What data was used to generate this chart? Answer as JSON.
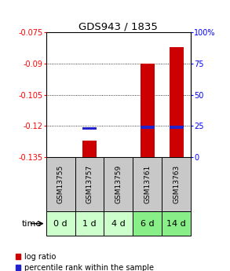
{
  "title": "GDS943 / 1835",
  "samples": [
    "GSM13755",
    "GSM13757",
    "GSM13759",
    "GSM13761",
    "GSM13763"
  ],
  "time_labels": [
    "0 d",
    "1 d",
    "4 d",
    "6 d",
    "14 d"
  ],
  "log_ratio": [
    null,
    -0.127,
    null,
    -0.09,
    -0.082
  ],
  "percentile_rank": [
    null,
    22,
    null,
    23,
    23
  ],
  "ylim_left": [
    -0.135,
    -0.075
  ],
  "ylim_right": [
    0,
    100
  ],
  "yticks_left": [
    -0.135,
    -0.12,
    -0.105,
    -0.09,
    -0.075
  ],
  "yticks_right": [
    0,
    25,
    50,
    75,
    100
  ],
  "bar_color_red": "#cc0000",
  "bar_color_blue": "#2222cc",
  "bar_width": 0.5,
  "bg_plot": "#ffffff",
  "bg_sample_label": "#c8c8c8",
  "bg_time_label_0": "#ccffcc",
  "bg_time_label_1": "#ccffcc",
  "bg_time_label_2": "#ccffcc",
  "bg_time_label_3": "#88ee88",
  "bg_time_label_4": "#88ee88",
  "title_fontsize": 9.5,
  "tick_fontsize": 7,
  "sample_fontsize": 6.5,
  "time_fontsize": 8,
  "legend_fontsize": 7
}
